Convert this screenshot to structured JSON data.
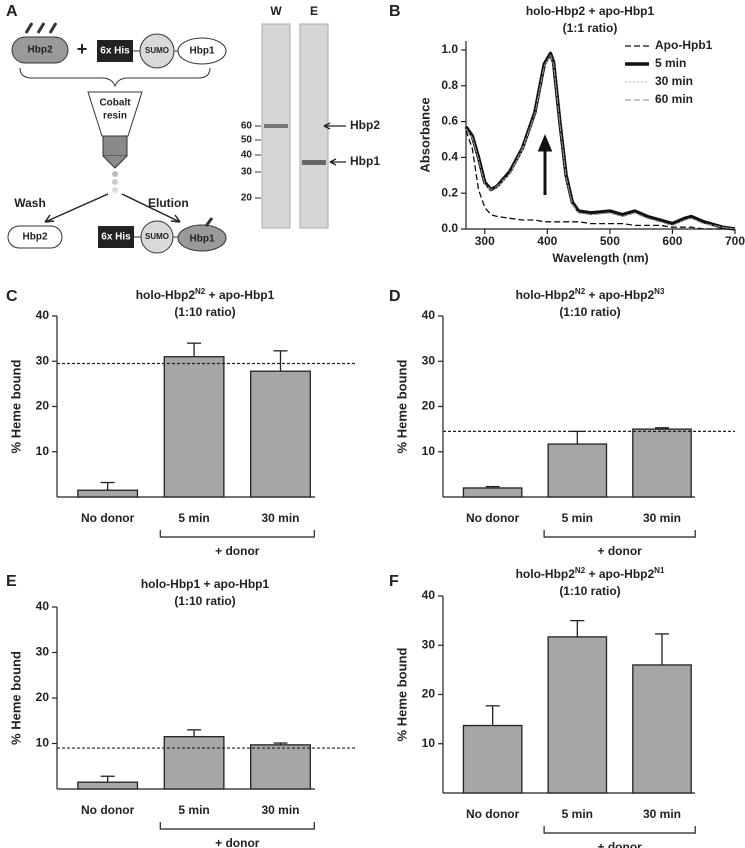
{
  "diagram": {
    "panel": "A",
    "donor": "Hbp2",
    "plus": "+",
    "tag": "6x His",
    "sumo": "SUMO",
    "acceptor": "Hbp1",
    "resin_lines": [
      "Cobalt",
      "resin"
    ],
    "wash": "Wash",
    "elution": "Elution",
    "wash_product": "Hbp2",
    "elution_product": [
      "6x His",
      "SUMO",
      "Hbp1"
    ]
  },
  "gel": {
    "lanes": [
      "W",
      "E"
    ],
    "markers": [
      60,
      50,
      40,
      30,
      20
    ],
    "bands": [
      "Hbp2",
      "Hbp1"
    ]
  },
  "chart_data": [
    {
      "type": "line",
      "panel": "B",
      "title": [
        "holo-Hbp2 + apo-Hbp1"
      ],
      "subtitle": "(1:1 ratio)",
      "xlabel": "Wavelength (nm)",
      "ylabel": "Absorbance",
      "xlim": [
        270,
        700
      ],
      "xticks": [
        300,
        400,
        500,
        600,
        700
      ],
      "ylim": [
        0,
        1.05
      ],
      "yticks": [
        {
          "value": 0,
          "label": "0.0"
        },
        0.2,
        0.4,
        0.6,
        0.8,
        {
          "value": 1,
          "label": "1.0"
        }
      ],
      "legend": "upper right",
      "x": [
        270,
        280,
        290,
        300,
        310,
        320,
        340,
        360,
        380,
        395,
        405,
        410,
        420,
        430,
        440,
        450,
        470,
        500,
        520,
        540,
        560,
        580,
        600,
        620,
        630,
        650,
        680,
        700
      ],
      "series": [
        {
          "name": "Apo-Hpb1",
          "color": "#111111",
          "line_style": "dashed",
          "line_width": 1.3,
          "values": [
            0.55,
            0.45,
            0.22,
            0.12,
            0.08,
            0.07,
            0.06,
            0.05,
            0.05,
            0.04,
            0.04,
            0.04,
            0.04,
            0.04,
            0.04,
            0.04,
            0.03,
            0.03,
            0.03,
            0.02,
            0.02,
            0.02,
            0.01,
            0.01,
            0.01,
            0.0,
            0.0,
            0.0
          ]
        },
        {
          "name": "5 min",
          "color": "#111111",
          "line_style": "solid",
          "line_width": 3.5,
          "values": [
            0.57,
            0.52,
            0.4,
            0.26,
            0.22,
            0.24,
            0.32,
            0.45,
            0.65,
            0.92,
            0.98,
            0.93,
            0.6,
            0.3,
            0.15,
            0.1,
            0.09,
            0.1,
            0.08,
            0.1,
            0.07,
            0.05,
            0.03,
            0.06,
            0.07,
            0.04,
            0.01,
            0.0
          ]
        },
        {
          "name": "30 min",
          "color": "#bbbbbb",
          "line_style": "dotted",
          "line_width": 1,
          "values": [
            0.56,
            0.51,
            0.39,
            0.25,
            0.21,
            0.23,
            0.31,
            0.44,
            0.64,
            0.91,
            0.97,
            0.92,
            0.59,
            0.29,
            0.14,
            0.09,
            0.08,
            0.09,
            0.07,
            0.09,
            0.06,
            0.04,
            0.02,
            0.05,
            0.06,
            0.03,
            0.01,
            0.0
          ]
        },
        {
          "name": "60 min",
          "color": "#888888",
          "line_style": "dashed",
          "line_width": 1,
          "values": [
            0.56,
            0.51,
            0.39,
            0.25,
            0.22,
            0.24,
            0.31,
            0.45,
            0.64,
            0.91,
            0.97,
            0.92,
            0.59,
            0.29,
            0.14,
            0.09,
            0.08,
            0.09,
            0.07,
            0.09,
            0.06,
            0.04,
            0.02,
            0.05,
            0.06,
            0.03,
            0.01,
            0.0
          ]
        }
      ]
    },
    {
      "type": "bar",
      "panel": "C",
      "title": [
        "holo-Hbp2",
        "N2",
        " + apo-Hbp1"
      ],
      "subtitle": "(1:10 ratio)",
      "ylabel": "% Heme bound",
      "categories": [
        "No donor",
        "5 min",
        "30 min"
      ],
      "values": [
        1.5,
        31,
        27.8
      ],
      "errors": [
        1.7,
        3,
        4.5
      ],
      "color": "#a6a6a6",
      "reference_line": 29.5,
      "bracket_label": "+ donor",
      "ylim": [
        0,
        40
      ],
      "yticks": [
        10,
        20,
        30,
        40
      ]
    },
    {
      "type": "bar",
      "panel": "D",
      "title": [
        "holo-Hbp2",
        "N2",
        " + apo-Hbp2",
        "N3"
      ],
      "subtitle": "(1:10 ratio)",
      "ylabel": "% Heme bound",
      "categories": [
        "No donor",
        "5 min",
        "30 min"
      ],
      "values": [
        2,
        11.7,
        15
      ],
      "errors": [
        0.3,
        2.8,
        0.3
      ],
      "color": "#a6a6a6",
      "reference_line": 14.5,
      "bracket_label": "+ donor",
      "ylim": [
        0,
        40
      ],
      "yticks": [
        10,
        20,
        30,
        40
      ]
    },
    {
      "type": "bar",
      "panel": "E",
      "title": [
        "holo-Hbp1 + apo-Hbp1"
      ],
      "subtitle": "(1:10 ratio)",
      "ylabel": "% Heme bound",
      "categories": [
        "No donor",
        "5 min",
        "30 min"
      ],
      "values": [
        1.5,
        11.5,
        9.7
      ],
      "errors": [
        1.3,
        1.5,
        0.4
      ],
      "color": "#a6a6a6",
      "reference_line": 9,
      "bracket_label": "+ donor",
      "ylim": [
        0,
        40
      ],
      "yticks": [
        10,
        20,
        30,
        40
      ]
    },
    {
      "type": "bar",
      "panel": "F",
      "title": [
        "holo-Hbp2",
        "N2",
        " + apo-Hbp2",
        "N1"
      ],
      "subtitle": "(1:10 ratio)",
      "ylabel": "% Heme bound",
      "categories": [
        "No donor",
        "5 min",
        "30 min"
      ],
      "values": [
        13.7,
        31.7,
        26
      ],
      "errors": [
        4,
        3.3,
        6.3
      ],
      "color": "#a6a6a6",
      "bracket_label": "+ donor",
      "ylim": [
        0,
        40
      ],
      "yticks": [
        10,
        20,
        30,
        40
      ]
    }
  ]
}
